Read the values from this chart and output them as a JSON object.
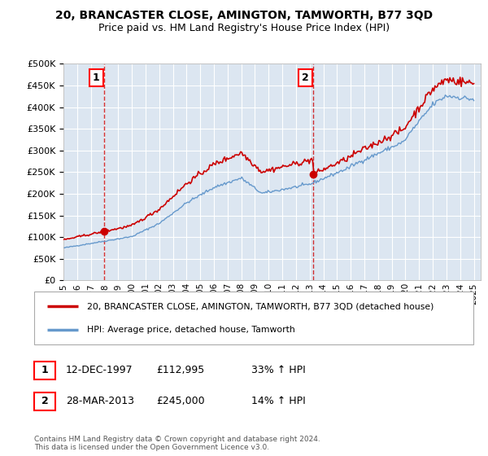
{
  "title": "20, BRANCASTER CLOSE, AMINGTON, TAMWORTH, B77 3QD",
  "subtitle": "Price paid vs. HM Land Registry's House Price Index (HPI)",
  "xlim_start": 1995.0,
  "xlim_end": 2025.5,
  "ylim": [
    0,
    500000
  ],
  "yticks": [
    0,
    50000,
    100000,
    150000,
    200000,
    250000,
    300000,
    350000,
    400000,
    450000,
    500000
  ],
  "background_color": "#dce6f1",
  "grid_color": "#ffffff",
  "sale1": {
    "date_num": 1997.95,
    "price": 112995,
    "label": "1"
  },
  "sale2": {
    "date_num": 2013.24,
    "price": 245000,
    "label": "2"
  },
  "legend_line1": "20, BRANCASTER CLOSE, AMINGTON, TAMWORTH, B77 3QD (detached house)",
  "legend_line2": "HPI: Average price, detached house, Tamworth",
  "annotation1_date": "12-DEC-1997",
  "annotation1_price": "£112,995",
  "annotation1_hpi": "33% ↑ HPI",
  "annotation2_date": "28-MAR-2013",
  "annotation2_price": "£245,000",
  "annotation2_hpi": "14% ↑ HPI",
  "footer": "Contains HM Land Registry data © Crown copyright and database right 2024.\nThis data is licensed under the Open Government Licence v3.0.",
  "line_color_red": "#cc0000",
  "line_color_blue": "#6699cc",
  "xticks": [
    1995,
    1996,
    1997,
    1998,
    1999,
    2000,
    2001,
    2002,
    2003,
    2004,
    2005,
    2006,
    2007,
    2008,
    2009,
    2010,
    2011,
    2012,
    2013,
    2014,
    2015,
    2016,
    2017,
    2018,
    2019,
    2020,
    2021,
    2022,
    2023,
    2024,
    2025
  ]
}
